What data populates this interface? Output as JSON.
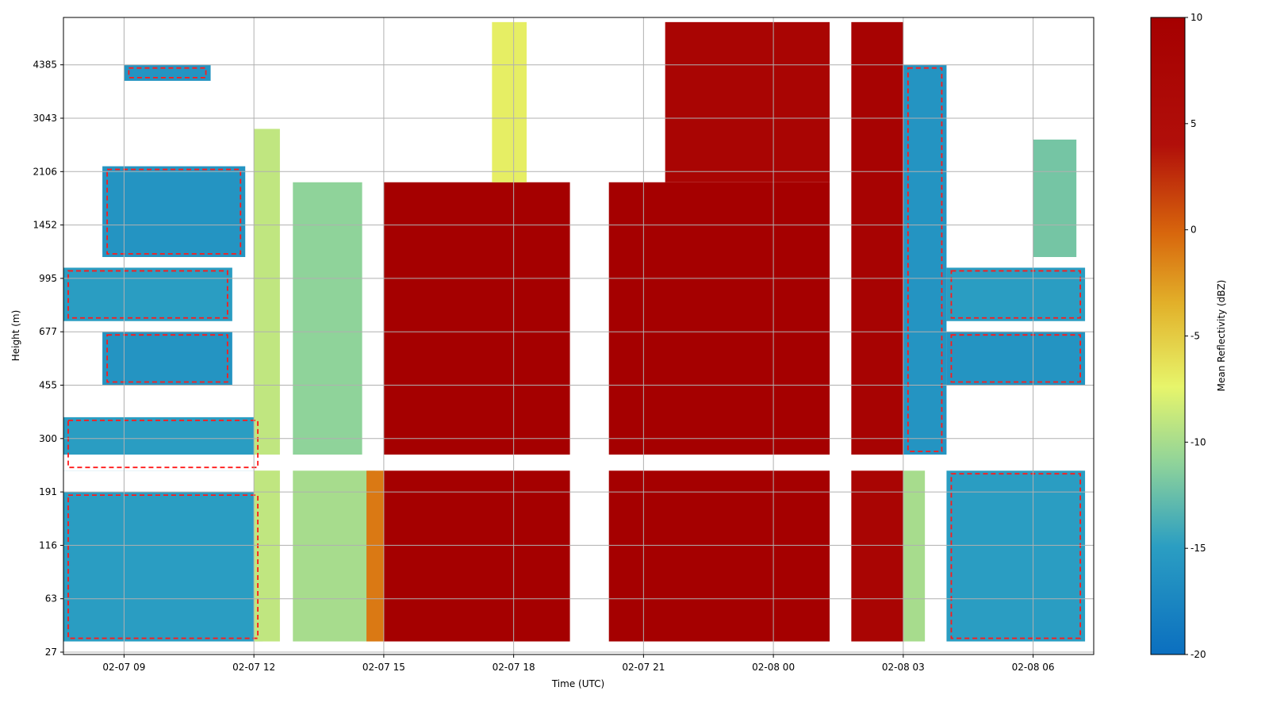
{
  "chart_data": {
    "type": "heatmap",
    "title": "",
    "xlabel": "Time (UTC)",
    "ylabel": "Height (m)",
    "x_ticks": [
      "02-07 09",
      "02-07 12",
      "02-07 15",
      "02-07 18",
      "02-07 21",
      "02-08 00",
      "02-08 03",
      "02-08 06"
    ],
    "y_ticks": [
      "27",
      "63",
      "116",
      "191",
      "300",
      "455",
      "677",
      "995",
      "1452",
      "2106",
      "3043",
      "4385"
    ],
    "x_range_hours": [
      7.6,
      31.4
    ],
    "y_scale": "log-like (tick index)",
    "grid": true,
    "colorbar": {
      "label": "Mean Reflectivity (dBZ)",
      "range": [
        -20,
        10
      ],
      "ticks": [
        "-20",
        "-15",
        "-10",
        "-5",
        "0",
        "5",
        "10"
      ],
      "colormap": [
        "#0b6fc0",
        "#2b9ec2",
        "#8fd39a",
        "#e7f56b",
        "#e2b12a",
        "#d8670d",
        "#b10f0a",
        "#a50000"
      ]
    },
    "contour": {
      "style": "dashed",
      "color": "#ff1a1a"
    },
    "regions": [
      {
        "t0": 7.6,
        "t1": 12.2,
        "h0": 0.2,
        "h1": 3.0,
        "dbz": -15
      },
      {
        "t0": 7.6,
        "t1": 12.2,
        "h0": 3.4,
        "h1": 4.4,
        "dbz": -15
      },
      {
        "t0": 8.5,
        "t1": 11.5,
        "h0": 5.0,
        "h1": 6.0,
        "dbz": -16
      },
      {
        "t0": 7.6,
        "t1": 11.5,
        "h0": 6.2,
        "h1": 7.2,
        "dbz": -15
      },
      {
        "t0": 8.5,
        "t1": 11.8,
        "h0": 7.4,
        "h1": 9.1,
        "dbz": -16
      },
      {
        "t0": 9.0,
        "t1": 11.0,
        "h0": 10.7,
        "h1": 11.0,
        "dbz": -16
      },
      {
        "t0": 12.0,
        "t1": 12.6,
        "h0": 0.2,
        "h1": 9.8,
        "dbz": -9
      },
      {
        "t0": 12.9,
        "t1": 14.8,
        "h0": 0.2,
        "h1": 3.4,
        "dbz": -10
      },
      {
        "t0": 12.9,
        "t1": 14.5,
        "h0": 3.7,
        "h1": 8.8,
        "dbz": -11
      },
      {
        "t0": 14.6,
        "t1": 15.0,
        "h0": 0.2,
        "h1": 3.4,
        "dbz": -1
      },
      {
        "t0": 15.0,
        "t1": 19.3,
        "h0": 0.2,
        "h1": 3.4,
        "dbz": 10
      },
      {
        "t0": 15.0,
        "t1": 19.3,
        "h0": 3.7,
        "h1": 8.8,
        "dbz": 10
      },
      {
        "t0": 17.5,
        "t1": 18.3,
        "h0": 8.8,
        "h1": 11.8,
        "dbz": -7
      },
      {
        "t0": 20.2,
        "t1": 25.3,
        "h0": 0.2,
        "h1": 3.4,
        "dbz": 10
      },
      {
        "t0": 20.2,
        "t1": 25.3,
        "h0": 3.7,
        "h1": 8.8,
        "dbz": 10
      },
      {
        "t0": 21.5,
        "t1": 25.3,
        "h0": 8.8,
        "h1": 11.8,
        "dbz": 8
      },
      {
        "t0": 25.8,
        "t1": 27.0,
        "h0": 0.2,
        "h1": 3.4,
        "dbz": 8
      },
      {
        "t0": 25.8,
        "t1": 27.0,
        "h0": 3.7,
        "h1": 11.8,
        "dbz": 9
      },
      {
        "t0": 27.0,
        "t1": 27.5,
        "h0": 0.2,
        "h1": 3.4,
        "dbz": -10
      },
      {
        "t0": 27.0,
        "t1": 28.0,
        "h0": 3.7,
        "h1": 11.0,
        "dbz": -16
      },
      {
        "t0": 28.0,
        "t1": 31.2,
        "h0": 0.2,
        "h1": 3.4,
        "dbz": -15
      },
      {
        "t0": 28.0,
        "t1": 31.2,
        "h0": 5.0,
        "h1": 6.0,
        "dbz": -16
      },
      {
        "t0": 28.0,
        "t1": 31.2,
        "h0": 6.2,
        "h1": 7.2,
        "dbz": -15
      },
      {
        "t0": 30.0,
        "t1": 31.0,
        "h0": 7.4,
        "h1": 9.6,
        "dbz": -12
      }
    ]
  }
}
